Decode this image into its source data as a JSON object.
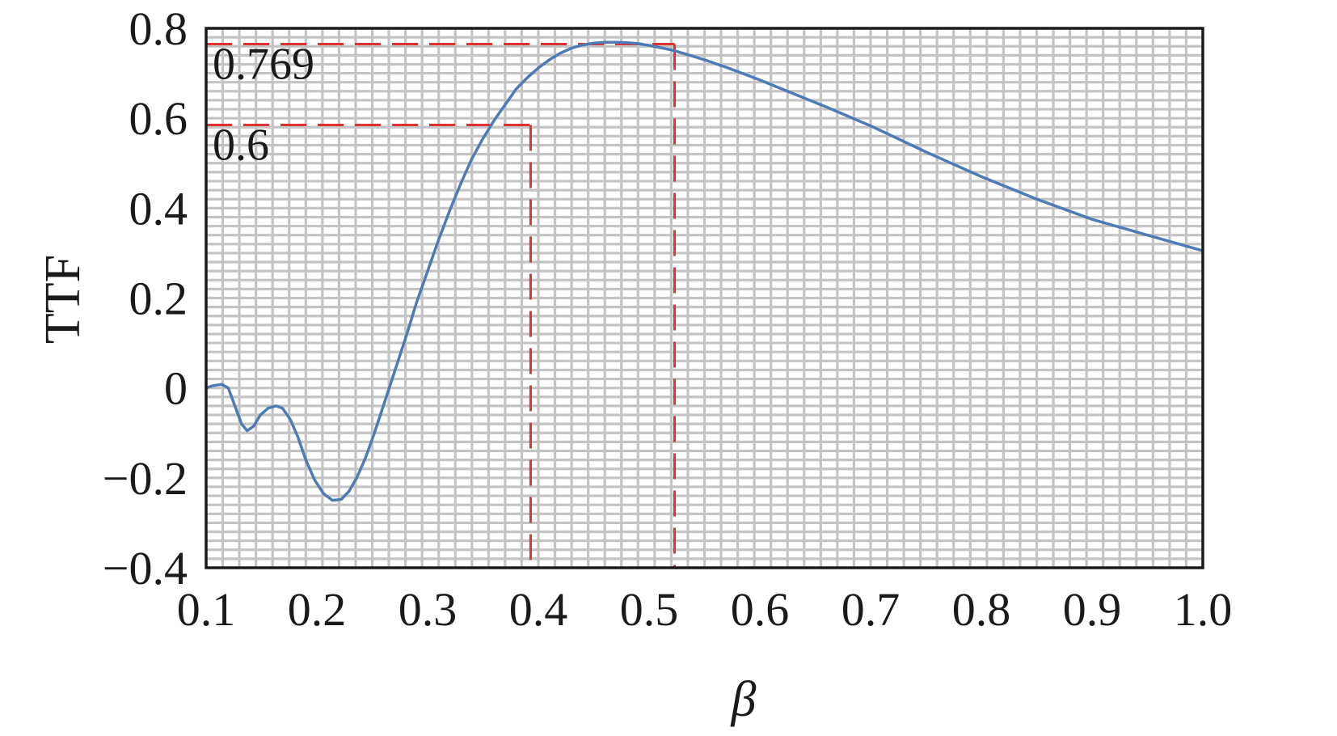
{
  "chart_data": {
    "type": "line",
    "xlabel": "β",
    "ylabel": "TTF",
    "xlim": [
      0.1,
      1.0
    ],
    "ylim": [
      -0.4,
      0.8
    ],
    "x_ticks": [
      "0.1",
      "0.2",
      "0.3",
      "0.4",
      "0.5",
      "0.6",
      "0.7",
      "0.8",
      "0.9",
      "1.0"
    ],
    "y_ticks": [
      "0.8",
      "0.6",
      "0.4",
      "0.2",
      "0",
      "−0.2",
      "−0.4"
    ],
    "grid": true,
    "grid_minor_step": 0.015,
    "grid_minor_step_y": 0.02,
    "series": [
      {
        "color": "#4f7bb5",
        "x": [
          0.1,
          0.106,
          0.114,
          0.12,
          0.126,
          0.132,
          0.137,
          0.143,
          0.149,
          0.156,
          0.163,
          0.169,
          0.176,
          0.183,
          0.19,
          0.198,
          0.206,
          0.214,
          0.222,
          0.229,
          0.236,
          0.244,
          0.252,
          0.26,
          0.27,
          0.28,
          0.29,
          0.3,
          0.31,
          0.32,
          0.33,
          0.34,
          0.35,
          0.36,
          0.37,
          0.38,
          0.39,
          0.4,
          0.41,
          0.42,
          0.43,
          0.44,
          0.45,
          0.46,
          0.47,
          0.48,
          0.49,
          0.5,
          0.51,
          0.52,
          0.53,
          0.55,
          0.57,
          0.6,
          0.63,
          0.66,
          0.7,
          0.75,
          0.8,
          0.85,
          0.9,
          0.95,
          1.0
        ],
        "y": [
          0.0,
          0.005,
          0.008,
          0.0,
          -0.04,
          -0.08,
          -0.095,
          -0.085,
          -0.06,
          -0.045,
          -0.04,
          -0.045,
          -0.07,
          -0.11,
          -0.16,
          -0.205,
          -0.235,
          -0.25,
          -0.248,
          -0.23,
          -0.2,
          -0.155,
          -0.1,
          -0.04,
          0.035,
          0.11,
          0.19,
          0.26,
          0.33,
          0.395,
          0.455,
          0.51,
          0.555,
          0.595,
          0.63,
          0.665,
          0.69,
          0.712,
          0.73,
          0.745,
          0.756,
          0.763,
          0.767,
          0.769,
          0.769,
          0.768,
          0.766,
          0.762,
          0.757,
          0.752,
          0.745,
          0.73,
          0.713,
          0.685,
          0.655,
          0.625,
          0.583,
          0.525,
          0.47,
          0.42,
          0.375,
          0.34,
          0.305
        ]
      }
    ],
    "reference_lines": [
      {
        "label": "0.769",
        "x": 0.523,
        "y": 0.765,
        "color": "#e03030"
      },
      {
        "label": "0.6",
        "x": 0.393,
        "y": 0.585,
        "color": "#e03030"
      }
    ]
  }
}
